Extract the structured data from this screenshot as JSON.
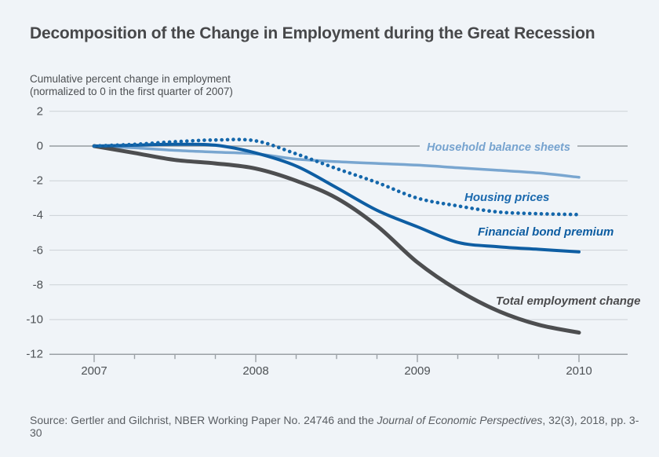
{
  "page": {
    "background": "#f0f4f8"
  },
  "chart_data": {
    "type": "line",
    "title": "Decomposition of the Change in Employment during the Great Recession",
    "subtitle_lines": [
      "Cumulative percent change in employment",
      "(normalized to 0 in the first quarter of 2007)"
    ],
    "xlabel": "",
    "ylabel": "Cumulative percent change in employment",
    "x": [
      2007,
      2007.25,
      2007.5,
      2007.75,
      2008,
      2008.25,
      2008.5,
      2008.75,
      2009,
      2009.25,
      2009.5,
      2009.75,
      2010
    ],
    "series": [
      {
        "id": "household",
        "name": "Household balance sheets",
        "style": "solid",
        "color": "#79a6d0",
        "values": [
          0,
          -0.1,
          -0.25,
          -0.35,
          -0.45,
          -0.75,
          -0.9,
          -1.0,
          -1.1,
          -1.25,
          -1.4,
          -1.55,
          -1.8
        ]
      },
      {
        "id": "total",
        "name": "Total employment change",
        "style": "solid",
        "color": "#4d4e50",
        "values": [
          0,
          -0.4,
          -0.8,
          -1.0,
          -1.3,
          -2.0,
          -3.0,
          -4.6,
          -6.7,
          -8.3,
          -9.5,
          -10.3,
          -10.75
        ]
      },
      {
        "id": "bond",
        "name": "Financial bond premium",
        "style": "solid",
        "color": "#0e5ea3",
        "values": [
          0,
          0.05,
          0.1,
          0.05,
          -0.4,
          -1.15,
          -2.4,
          -3.7,
          -4.65,
          -5.55,
          -5.8,
          -5.95,
          -6.1
        ]
      },
      {
        "id": "housing",
        "name": "Housing prices",
        "style": "dotted",
        "color": "#1467ab",
        "values": [
          0,
          0.1,
          0.25,
          0.35,
          0.3,
          -0.45,
          -1.3,
          -2.1,
          -3.0,
          -3.45,
          -3.8,
          -3.9,
          -3.95
        ]
      }
    ],
    "yticks": [
      2,
      0,
      -2,
      -4,
      -6,
      -8,
      -10,
      -12
    ],
    "xticks": [
      2007,
      2008,
      2009,
      2010
    ],
    "ylim": [
      -12,
      2
    ],
    "xlim": [
      2007,
      2010
    ],
    "grid": true,
    "legend_position": "inline-annotations",
    "label_colors": {
      "household": "#76a3cf",
      "housing": "#1a69ae",
      "bond": "#0c5ca1",
      "total": "#4b4b4d"
    }
  },
  "source": {
    "prefix": "Source: Gertler and Gilchrist, NBER Working Paper No. 24746 and the ",
    "italic_part": "Journal of Economic Perspectives",
    "suffix": ", 32(3), 2018, pp. 3-30"
  }
}
